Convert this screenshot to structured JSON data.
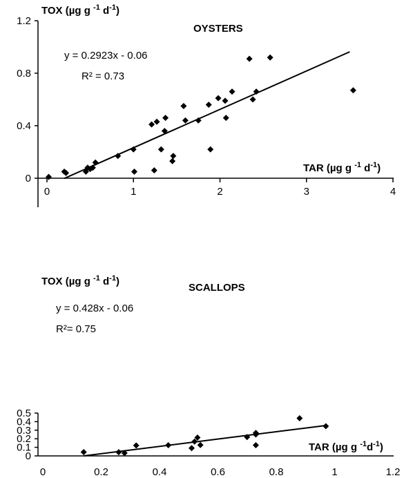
{
  "chart_data": [
    {
      "type": "scatter",
      "title": "OYSTERS",
      "xlabel": "TAR (µg g -1 d-1)",
      "ylabel": "TOX (µg g -1 d-1)",
      "xlim": [
        0,
        4
      ],
      "ylim": [
        0,
        1.2
      ],
      "x_ticks": [
        "0",
        "1",
        "2",
        "3",
        "4"
      ],
      "y_ticks": [
        "0",
        "0.4",
        "0.8",
        "1.2"
      ],
      "equation": "y = 0.2923x - 0.06",
      "r2": "R² = 0.73",
      "trendline": {
        "slope": 0.2923,
        "intercept": -0.06,
        "x_range": [
          0.2,
          3.5
        ]
      },
      "points": [
        [
          0.02,
          0.01
        ],
        [
          0.2,
          0.05
        ],
        [
          0.22,
          0.04
        ],
        [
          0.45,
          0.05
        ],
        [
          0.47,
          0.08
        ],
        [
          0.5,
          0.07
        ],
        [
          0.53,
          0.08
        ],
        [
          0.56,
          0.12
        ],
        [
          0.82,
          0.17
        ],
        [
          1.0,
          0.22
        ],
        [
          1.01,
          0.05
        ],
        [
          1.21,
          0.41
        ],
        [
          1.24,
          0.06
        ],
        [
          1.27,
          0.43
        ],
        [
          1.32,
          0.22
        ],
        [
          1.36,
          0.36
        ],
        [
          1.37,
          0.46
        ],
        [
          1.45,
          0.13
        ],
        [
          1.46,
          0.17
        ],
        [
          1.58,
          0.55
        ],
        [
          1.6,
          0.44
        ],
        [
          1.75,
          0.44
        ],
        [
          1.87,
          0.56
        ],
        [
          1.89,
          0.22
        ],
        [
          1.98,
          0.61
        ],
        [
          2.06,
          0.59
        ],
        [
          2.07,
          0.46
        ],
        [
          2.14,
          0.66
        ],
        [
          2.34,
          0.91
        ],
        [
          2.38,
          0.6
        ],
        [
          2.42,
          0.66
        ],
        [
          2.58,
          0.92
        ],
        [
          3.54,
          0.67
        ]
      ]
    },
    {
      "type": "scatter",
      "title": "SCALLOPS",
      "xlabel": "TAR (µg g -1d-1)",
      "ylabel": "TOX (µg g -1 d-1)",
      "xlim": [
        0,
        1.2
      ],
      "ylim": [
        0,
        0.5
      ],
      "x_ticks": [
        "0",
        "0.2",
        "0.4",
        "0.6",
        "0.8",
        "1",
        "1.2"
      ],
      "y_ticks": [
        "0",
        "0.1",
        "0.2",
        "0.3",
        "0.4",
        "0.5"
      ],
      "equation": "y = 0.428x - 0.06",
      "r2": "R²= 0.75",
      "trendline": {
        "slope": 0.428,
        "intercept": -0.06,
        "x_range": [
          0.14,
          0.97
        ]
      },
      "points": [
        [
          0.14,
          0.044
        ],
        [
          0.26,
          0.043
        ],
        [
          0.28,
          0.033
        ],
        [
          0.32,
          0.122
        ],
        [
          0.43,
          0.125
        ],
        [
          0.51,
          0.091
        ],
        [
          0.52,
          0.167
        ],
        [
          0.53,
          0.214
        ],
        [
          0.54,
          0.127
        ],
        [
          0.7,
          0.22
        ],
        [
          0.73,
          0.268
        ],
        [
          0.73,
          0.25
        ],
        [
          0.73,
          0.125
        ],
        [
          0.88,
          0.44
        ],
        [
          0.97,
          0.347
        ]
      ]
    }
  ]
}
